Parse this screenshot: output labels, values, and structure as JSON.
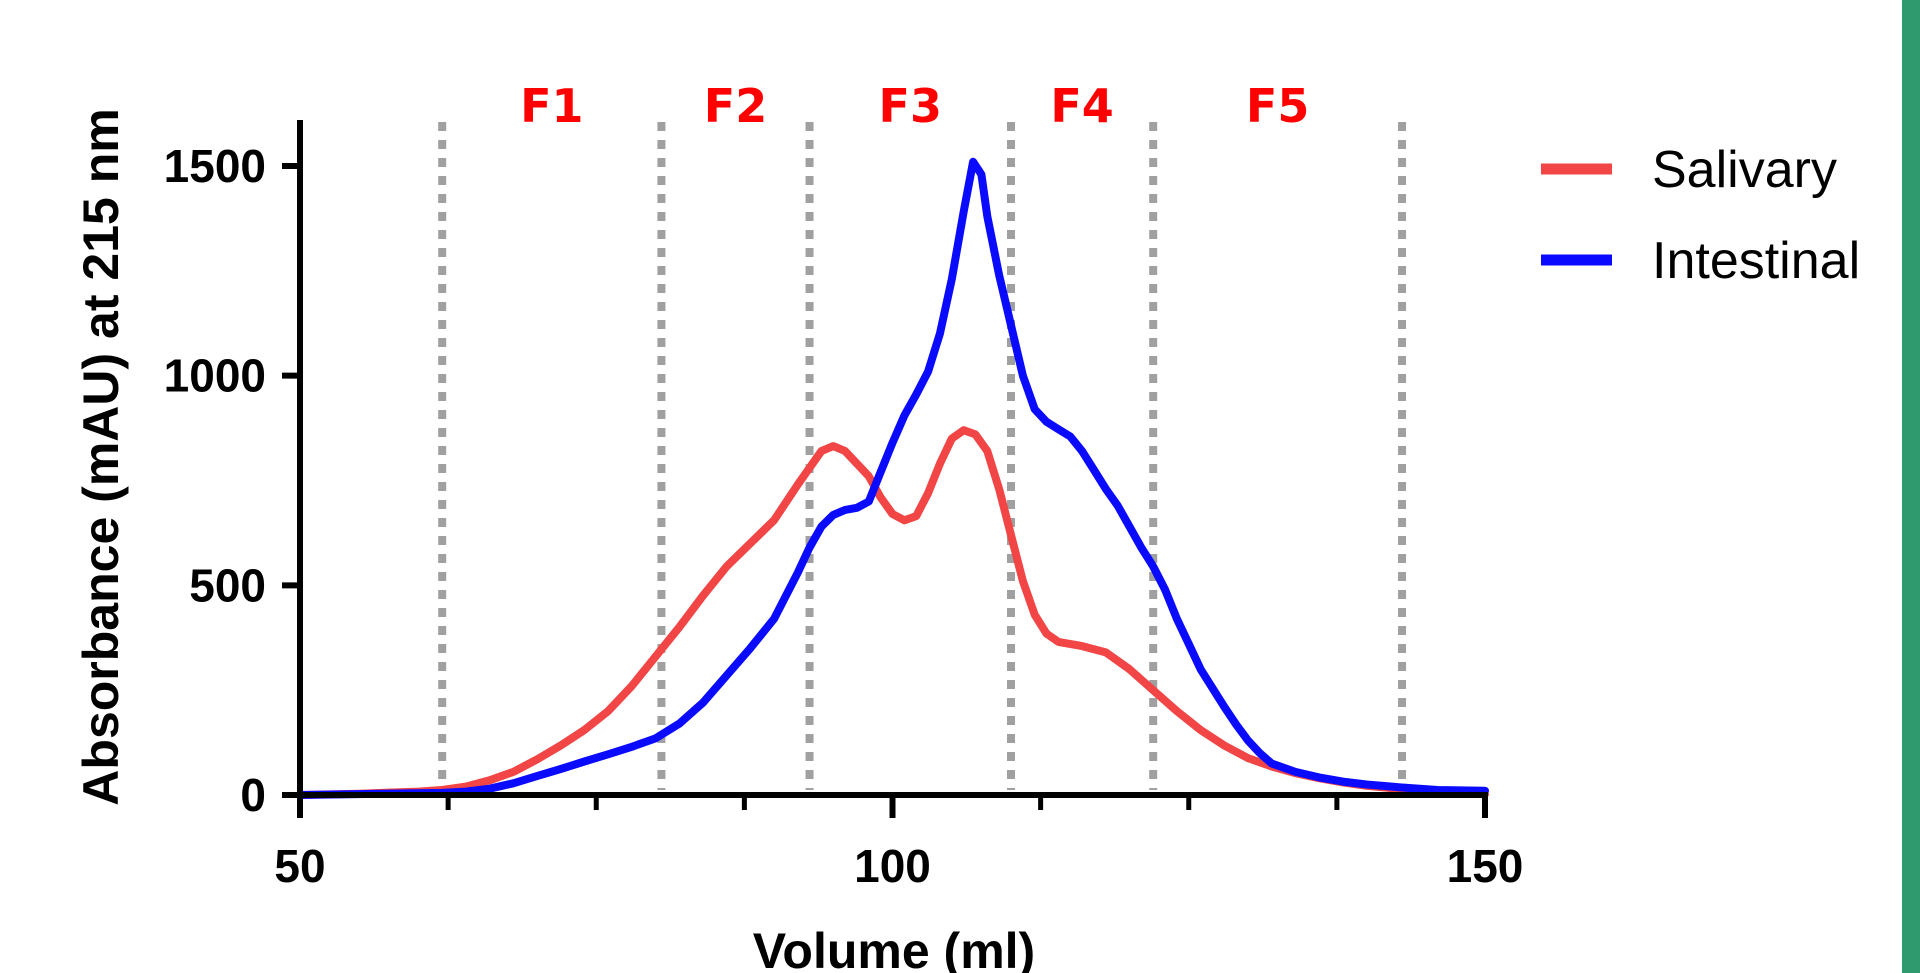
{
  "chart_data": {
    "type": "line",
    "xlabel": "Volume (ml)",
    "ylabel": "Absorbance (mAU) at 215 nm",
    "xlim": [
      50,
      150
    ],
    "ylim": [
      0,
      1500
    ],
    "x_ticks": [
      50,
      100,
      150
    ],
    "y_ticks": [
      0,
      500,
      1000,
      1500
    ],
    "x_tick_labels": [
      "50",
      "100",
      "150"
    ],
    "y_tick_labels": [
      "0",
      "500",
      "1000",
      "1500"
    ],
    "grid": false,
    "legend_position": "right",
    "fractions": [
      {
        "label": "F1",
        "from": 62,
        "to": 80.5
      },
      {
        "label": "F2",
        "from": 80.5,
        "to": 93
      },
      {
        "label": "F3",
        "from": 93,
        "to": 110
      },
      {
        "label": "F4",
        "from": 110,
        "to": 122
      },
      {
        "label": "F5",
        "from": 122,
        "to": 143
      }
    ],
    "fraction_boundaries": [
      62,
      80.5,
      93,
      110,
      122,
      143
    ],
    "series": [
      {
        "name": "Salivary",
        "color": "#f24545",
        "points": [
          [
            50,
            0
          ],
          [
            55,
            3
          ],
          [
            60,
            8
          ],
          [
            62,
            12
          ],
          [
            64,
            20
          ],
          [
            66,
            35
          ],
          [
            68,
            55
          ],
          [
            70,
            85
          ],
          [
            72,
            118
          ],
          [
            74,
            155
          ],
          [
            76,
            200
          ],
          [
            78,
            260
          ],
          [
            80,
            330
          ],
          [
            82,
            400
          ],
          [
            84,
            475
          ],
          [
            86,
            545
          ],
          [
            88,
            600
          ],
          [
            90,
            655
          ],
          [
            92,
            740
          ],
          [
            94,
            820
          ],
          [
            95,
            832
          ],
          [
            96,
            820
          ],
          [
            98,
            760
          ],
          [
            99,
            710
          ],
          [
            100,
            670
          ],
          [
            101,
            655
          ],
          [
            102,
            665
          ],
          [
            103,
            720
          ],
          [
            104,
            790
          ],
          [
            105,
            850
          ],
          [
            106,
            870
          ],
          [
            107,
            860
          ],
          [
            108,
            820
          ],
          [
            109,
            730
          ],
          [
            110,
            620
          ],
          [
            111,
            510
          ],
          [
            112,
            430
          ],
          [
            113,
            385
          ],
          [
            114,
            365
          ],
          [
            116,
            355
          ],
          [
            118,
            340
          ],
          [
            120,
            300
          ],
          [
            122,
            250
          ],
          [
            124,
            200
          ],
          [
            126,
            155
          ],
          [
            128,
            118
          ],
          [
            130,
            88
          ],
          [
            132,
            68
          ],
          [
            134,
            52
          ],
          [
            136,
            40
          ],
          [
            138,
            30
          ],
          [
            140,
            22
          ],
          [
            143,
            14
          ],
          [
            147,
            6
          ],
          [
            150,
            2
          ]
        ]
      },
      {
        "name": "Intestinal",
        "color": "#0a0aff",
        "points": [
          [
            50,
            0
          ],
          [
            62,
            5
          ],
          [
            64,
            8
          ],
          [
            66,
            15
          ],
          [
            68,
            28
          ],
          [
            70,
            45
          ],
          [
            72,
            62
          ],
          [
            74,
            80
          ],
          [
            76,
            97
          ],
          [
            78,
            115
          ],
          [
            80,
            135
          ],
          [
            82,
            170
          ],
          [
            84,
            220
          ],
          [
            86,
            285
          ],
          [
            88,
            350
          ],
          [
            90,
            420
          ],
          [
            92,
            530
          ],
          [
            93,
            590
          ],
          [
            94,
            640
          ],
          [
            95,
            668
          ],
          [
            96,
            680
          ],
          [
            97,
            685
          ],
          [
            98,
            700
          ],
          [
            99,
            770
          ],
          [
            100,
            840
          ],
          [
            101,
            905
          ],
          [
            102,
            955
          ],
          [
            103,
            1010
          ],
          [
            104,
            1100
          ],
          [
            105,
            1230
          ],
          [
            106,
            1390
          ],
          [
            106.8,
            1510
          ],
          [
            107.5,
            1480
          ],
          [
            108,
            1380
          ],
          [
            109,
            1240
          ],
          [
            110,
            1120
          ],
          [
            111,
            1000
          ],
          [
            112,
            920
          ],
          [
            113,
            890
          ],
          [
            114,
            872
          ],
          [
            115,
            855
          ],
          [
            116,
            820
          ],
          [
            117,
            775
          ],
          [
            118,
            730
          ],
          [
            119,
            690
          ],
          [
            120,
            640
          ],
          [
            121,
            590
          ],
          [
            122,
            545
          ],
          [
            123,
            490
          ],
          [
            124,
            420
          ],
          [
            125,
            360
          ],
          [
            126,
            300
          ],
          [
            127,
            255
          ],
          [
            128,
            210
          ],
          [
            129,
            168
          ],
          [
            130,
            130
          ],
          [
            131,
            100
          ],
          [
            132,
            75
          ],
          [
            134,
            55
          ],
          [
            136,
            42
          ],
          [
            138,
            32
          ],
          [
            140,
            25
          ],
          [
            143,
            18
          ],
          [
            146,
            12
          ],
          [
            150,
            10
          ]
        ]
      }
    ]
  }
}
